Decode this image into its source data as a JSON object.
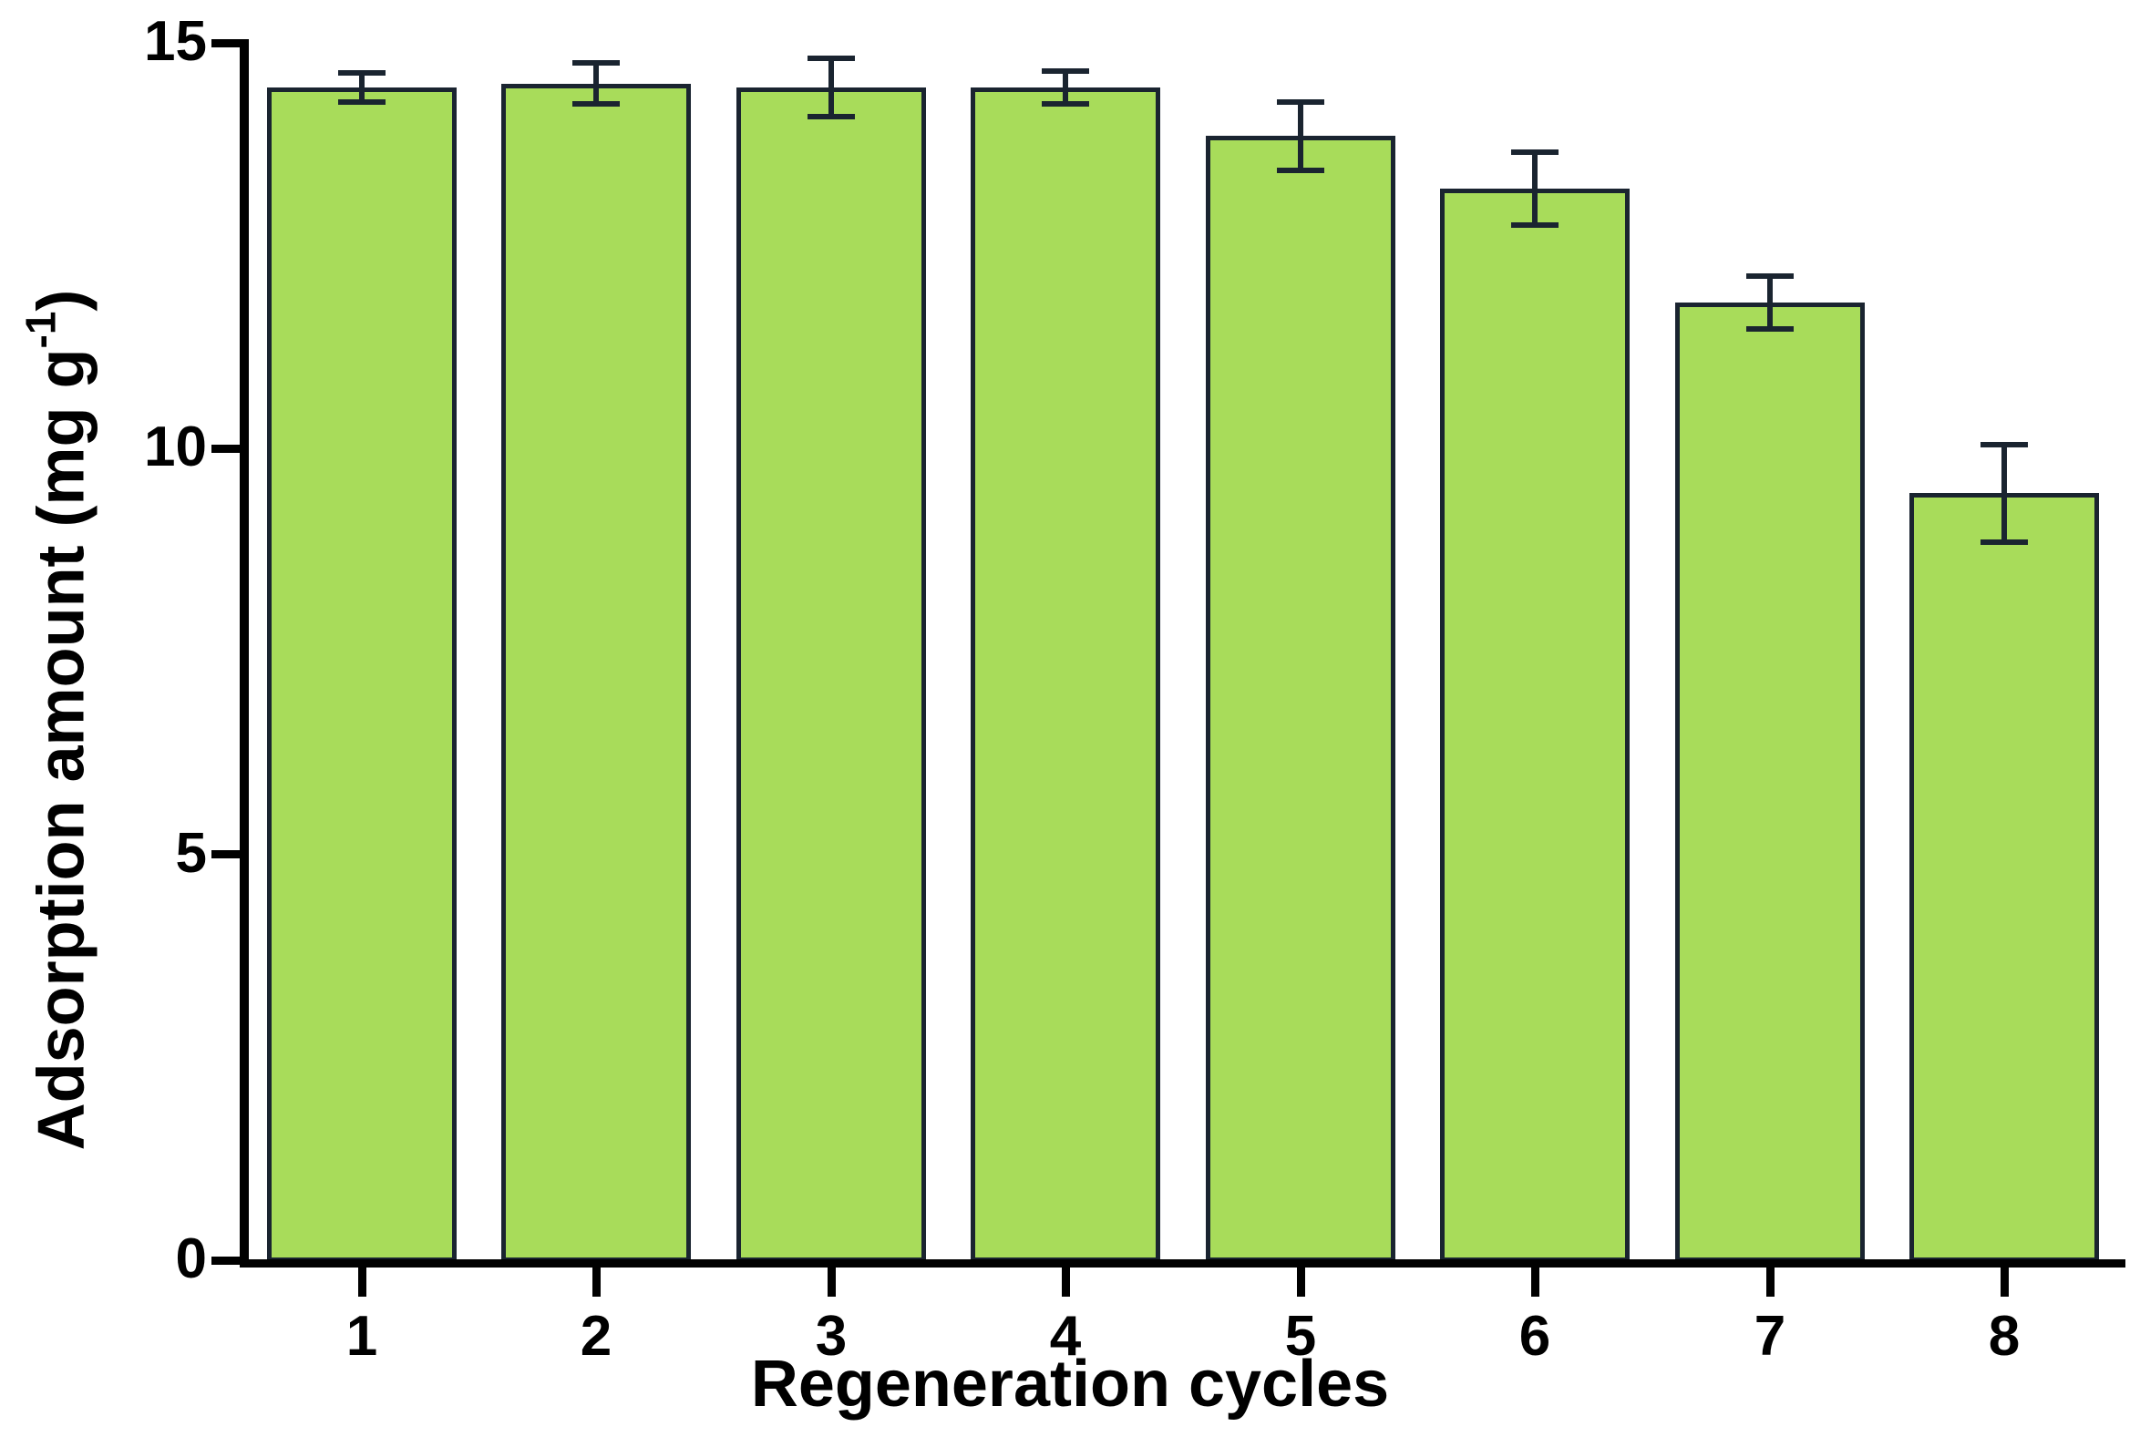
{
  "figure": {
    "background_color": "#ffffff",
    "text_color": "#000000"
  },
  "chart_data": {
    "type": "bar",
    "title": "",
    "xlabel": "Regeneration cycles",
    "ylabel": "Adsorption amount (mg g⁻¹)",
    "ylabel_parts": {
      "main": "Adsorption amount (mg g",
      "sup": "-1",
      "close": ")"
    },
    "categories": [
      "1",
      "2",
      "3",
      "4",
      "5",
      "6",
      "7",
      "8"
    ],
    "values": [
      14.45,
      14.5,
      14.45,
      14.45,
      13.85,
      13.2,
      11.8,
      9.45
    ],
    "errors": [
      0.18,
      0.25,
      0.36,
      0.2,
      0.42,
      0.45,
      0.33,
      0.6
    ],
    "ylim": [
      0,
      15
    ],
    "yticks": [
      0,
      5,
      10,
      15
    ],
    "grid": false,
    "legend": null,
    "bar_fill_color": "#a8dc5a",
    "bar_border_color": "#1a2430",
    "error_bar_color": "#1a2430",
    "axis_color": "#000000"
  }
}
